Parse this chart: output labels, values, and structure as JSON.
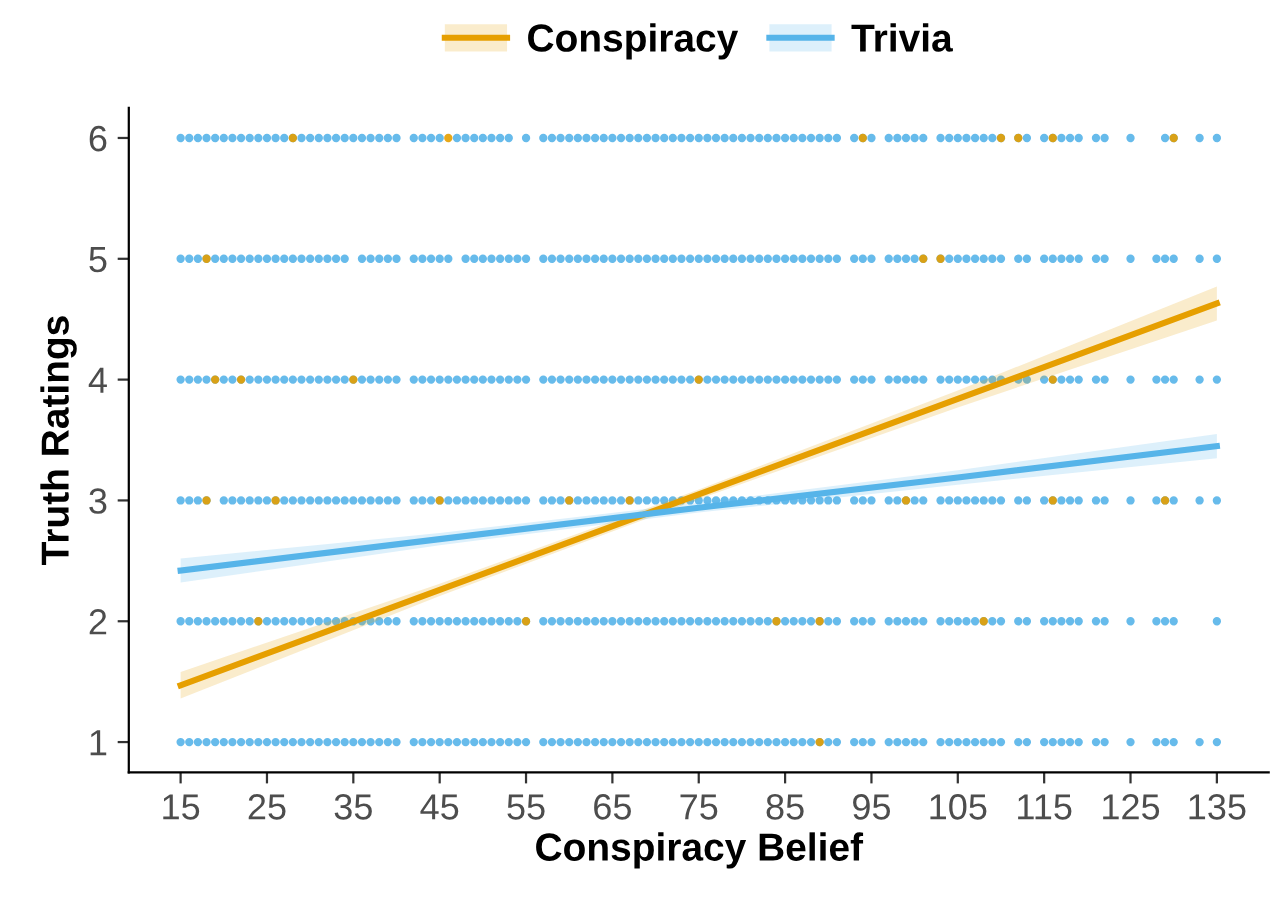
{
  "chart_data": {
    "type": "line",
    "xlabel": "Conspiracy Belief",
    "ylabel": "Truth Ratings",
    "xlim": [
      9,
      141
    ],
    "xticks": [
      15,
      25,
      35,
      45,
      55,
      65,
      75,
      85,
      95,
      105,
      115,
      125,
      135
    ],
    "ylim": [
      0.75,
      6.25
    ],
    "yticks": [
      1,
      2,
      3,
      4,
      5,
      6
    ],
    "grid": false,
    "legend": "top",
    "marker": "circle",
    "series": [
      {
        "type": "scatter",
        "color": "#56b4e9",
        "x": [
          15,
          16,
          17,
          18,
          19,
          20,
          21,
          22,
          23,
          24,
          25,
          26,
          27,
          28,
          29,
          30,
          31,
          32,
          33,
          34,
          35,
          36,
          37,
          38,
          39,
          40,
          42,
          43,
          44,
          45,
          46,
          47,
          48,
          49,
          50,
          51,
          52,
          53,
          54,
          55,
          57,
          58,
          59,
          60,
          61,
          62,
          63,
          64,
          65,
          66,
          67,
          68,
          69,
          70,
          71,
          72,
          73,
          74,
          75,
          76,
          77,
          78,
          79,
          80,
          81,
          82,
          83,
          84,
          85,
          86,
          87,
          88,
          89,
          90,
          91,
          93,
          94,
          95,
          97,
          98,
          99,
          100,
          101,
          103,
          104,
          105,
          106,
          107,
          108,
          109,
          110,
          112,
          113,
          115,
          116,
          117,
          118,
          119,
          121,
          122,
          125,
          128,
          129,
          130,
          133,
          135
        ],
        "values": [
          1,
          1,
          1,
          1,
          1,
          1,
          1,
          1,
          1,
          1,
          1,
          1,
          1,
          1,
          1,
          1,
          1,
          1,
          1,
          1,
          1,
          1,
          1,
          1,
          1,
          1,
          1,
          1,
          1,
          1,
          1,
          1,
          1,
          1,
          1,
          1,
          1,
          1,
          1,
          1,
          1,
          1,
          1,
          1,
          1,
          1,
          1,
          1,
          1,
          1,
          1,
          1,
          1,
          1,
          1,
          1,
          1,
          1,
          1,
          1,
          1,
          1,
          1,
          1,
          1,
          1,
          1,
          1,
          1,
          1,
          1,
          1,
          1,
          1,
          1,
          1,
          1,
          1,
          1,
          1,
          1,
          1,
          1,
          1,
          1,
          1,
          1,
          1,
          1,
          1,
          1,
          1,
          1,
          1,
          1,
          1,
          1,
          1,
          1,
          1,
          1,
          1,
          1,
          1,
          1,
          1
        ]
      },
      {
        "type": "scatter",
        "color": "#56b4e9",
        "x": [
          15,
          16,
          17,
          18,
          19,
          20,
          21,
          22,
          23,
          24,
          25,
          26,
          27,
          28,
          29,
          30,
          31,
          32,
          33,
          34,
          35,
          36,
          37,
          38,
          39,
          40,
          42,
          43,
          44,
          45,
          46,
          47,
          48,
          49,
          50,
          51,
          52,
          53,
          54,
          55,
          57,
          58,
          59,
          60,
          61,
          62,
          63,
          64,
          65,
          66,
          67,
          68,
          69,
          70,
          71,
          72,
          73,
          74,
          75,
          76,
          77,
          78,
          79,
          80,
          81,
          82,
          83,
          84,
          85,
          86,
          87,
          88,
          89,
          90,
          91,
          93,
          94,
          95,
          97,
          98,
          99,
          100,
          101,
          103,
          104,
          105,
          106,
          107,
          108,
          109,
          110,
          112,
          113,
          115,
          116,
          117,
          118,
          119,
          121,
          122,
          125,
          128,
          129,
          130,
          135
        ],
        "values": [
          2,
          2,
          2,
          2,
          2,
          2,
          2,
          2,
          2,
          2,
          2,
          2,
          2,
          2,
          2,
          2,
          2,
          2,
          2,
          2,
          2,
          2,
          2,
          2,
          2,
          2,
          2,
          2,
          2,
          2,
          2,
          2,
          2,
          2,
          2,
          2,
          2,
          2,
          2,
          2,
          2,
          2,
          2,
          2,
          2,
          2,
          2,
          2,
          2,
          2,
          2,
          2,
          2,
          2,
          2,
          2,
          2,
          2,
          2,
          2,
          2,
          2,
          2,
          2,
          2,
          2,
          2,
          2,
          2,
          2,
          2,
          2,
          2,
          2,
          2,
          2,
          2,
          2,
          2,
          2,
          2,
          2,
          2,
          2,
          2,
          2,
          2,
          2,
          2,
          2,
          2,
          2,
          2,
          2,
          2,
          2,
          2,
          2,
          2,
          2,
          2,
          2,
          2,
          2,
          2
        ]
      },
      {
        "type": "scatter",
        "color": "#56b4e9",
        "x": [
          15,
          16,
          17,
          18,
          20,
          21,
          22,
          23,
          24,
          25,
          26,
          27,
          28,
          29,
          30,
          31,
          32,
          33,
          34,
          35,
          36,
          37,
          38,
          39,
          40,
          42,
          43,
          44,
          45,
          46,
          47,
          48,
          49,
          50,
          51,
          52,
          53,
          54,
          55,
          57,
          58,
          59,
          60,
          61,
          62,
          63,
          64,
          65,
          66,
          67,
          68,
          69,
          70,
          71,
          72,
          73,
          74,
          75,
          76,
          77,
          78,
          79,
          80,
          81,
          82,
          83,
          84,
          85,
          86,
          87,
          88,
          89,
          90,
          91,
          93,
          94,
          95,
          97,
          98,
          99,
          100,
          101,
          103,
          104,
          105,
          106,
          107,
          108,
          109,
          110,
          112,
          113,
          115,
          116,
          117,
          118,
          119,
          121,
          122,
          125,
          128,
          129,
          130,
          133,
          135
        ],
        "values": [
          3,
          3,
          3,
          3,
          3,
          3,
          3,
          3,
          3,
          3,
          3,
          3,
          3,
          3,
          3,
          3,
          3,
          3,
          3,
          3,
          3,
          3,
          3,
          3,
          3,
          3,
          3,
          3,
          3,
          3,
          3,
          3,
          3,
          3,
          3,
          3,
          3,
          3,
          3,
          3,
          3,
          3,
          3,
          3,
          3,
          3,
          3,
          3,
          3,
          3,
          3,
          3,
          3,
          3,
          3,
          3,
          3,
          3,
          3,
          3,
          3,
          3,
          3,
          3,
          3,
          3,
          3,
          3,
          3,
          3,
          3,
          3,
          3,
          3,
          3,
          3,
          3,
          3,
          3,
          3,
          3,
          3,
          3,
          3,
          3,
          3,
          3,
          3,
          3,
          3,
          3,
          3,
          3,
          3,
          3,
          3,
          3,
          3,
          3,
          3,
          3,
          3,
          3,
          3,
          3
        ]
      },
      {
        "type": "scatter",
        "color": "#56b4e9",
        "x": [
          15,
          16,
          17,
          18,
          19,
          20,
          21,
          22,
          23,
          24,
          25,
          26,
          27,
          28,
          29,
          30,
          31,
          32,
          33,
          34,
          35,
          36,
          37,
          38,
          39,
          40,
          42,
          43,
          44,
          45,
          46,
          47,
          48,
          49,
          50,
          51,
          52,
          53,
          54,
          55,
          57,
          58,
          59,
          60,
          61,
          62,
          63,
          64,
          65,
          66,
          67,
          68,
          69,
          70,
          71,
          72,
          73,
          74,
          75,
          76,
          77,
          78,
          79,
          80,
          81,
          82,
          83,
          84,
          85,
          86,
          87,
          88,
          89,
          90,
          91,
          93,
          94,
          95,
          97,
          98,
          99,
          100,
          101,
          103,
          104,
          105,
          106,
          107,
          108,
          109,
          110,
          112,
          113,
          115,
          116,
          117,
          118,
          119,
          121,
          122,
          125,
          128,
          129,
          130,
          133,
          135
        ],
        "values": [
          4,
          4,
          4,
          4,
          4,
          4,
          4,
          4,
          4,
          4,
          4,
          4,
          4,
          4,
          4,
          4,
          4,
          4,
          4,
          4,
          4,
          4,
          4,
          4,
          4,
          4,
          4,
          4,
          4,
          4,
          4,
          4,
          4,
          4,
          4,
          4,
          4,
          4,
          4,
          4,
          4,
          4,
          4,
          4,
          4,
          4,
          4,
          4,
          4,
          4,
          4,
          4,
          4,
          4,
          4,
          4,
          4,
          4,
          4,
          4,
          4,
          4,
          4,
          4,
          4,
          4,
          4,
          4,
          4,
          4,
          4,
          4,
          4,
          4,
          4,
          4,
          4,
          4,
          4,
          4,
          4,
          4,
          4,
          4,
          4,
          4,
          4,
          4,
          4,
          4,
          4,
          4,
          4,
          4,
          4,
          4,
          4,
          4,
          4,
          4,
          4,
          4,
          4,
          4,
          4,
          4
        ]
      },
      {
        "type": "scatter",
        "color": "#56b4e9",
        "x": [
          15,
          16,
          17,
          18,
          19,
          20,
          21,
          22,
          23,
          24,
          25,
          26,
          27,
          28,
          29,
          30,
          31,
          32,
          33,
          34,
          36,
          37,
          38,
          39,
          40,
          42,
          43,
          44,
          45,
          46,
          48,
          49,
          50,
          51,
          52,
          53,
          54,
          55,
          57,
          58,
          59,
          60,
          61,
          62,
          63,
          64,
          65,
          66,
          67,
          68,
          69,
          70,
          71,
          72,
          73,
          74,
          75,
          76,
          77,
          78,
          79,
          80,
          81,
          82,
          83,
          84,
          85,
          86,
          87,
          88,
          89,
          90,
          91,
          93,
          94,
          95,
          97,
          98,
          99,
          100,
          101,
          103,
          104,
          105,
          106,
          107,
          108,
          109,
          110,
          112,
          113,
          115,
          116,
          117,
          118,
          119,
          121,
          122,
          125,
          128,
          129,
          130,
          133,
          135
        ],
        "values": [
          5,
          5,
          5,
          5,
          5,
          5,
          5,
          5,
          5,
          5,
          5,
          5,
          5,
          5,
          5,
          5,
          5,
          5,
          5,
          5,
          5,
          5,
          5,
          5,
          5,
          5,
          5,
          5,
          5,
          5,
          5,
          5,
          5,
          5,
          5,
          5,
          5,
          5,
          5,
          5,
          5,
          5,
          5,
          5,
          5,
          5,
          5,
          5,
          5,
          5,
          5,
          5,
          5,
          5,
          5,
          5,
          5,
          5,
          5,
          5,
          5,
          5,
          5,
          5,
          5,
          5,
          5,
          5,
          5,
          5,
          5,
          5,
          5,
          5,
          5,
          5,
          5,
          5,
          5,
          5,
          5,
          5,
          5,
          5,
          5,
          5,
          5,
          5,
          5,
          5,
          5,
          5,
          5,
          5,
          5,
          5,
          5,
          5,
          5,
          5,
          5,
          5,
          5,
          5
        ]
      },
      {
        "type": "scatter",
        "color": "#56b4e9",
        "x": [
          15,
          16,
          17,
          18,
          19,
          20,
          21,
          22,
          23,
          24,
          25,
          26,
          27,
          28,
          29,
          30,
          31,
          32,
          33,
          34,
          35,
          36,
          37,
          38,
          39,
          40,
          42,
          43,
          44,
          45,
          47,
          48,
          49,
          50,
          51,
          52,
          53,
          55,
          57,
          58,
          59,
          60,
          61,
          62,
          63,
          64,
          65,
          66,
          67,
          68,
          69,
          70,
          71,
          72,
          73,
          74,
          75,
          76,
          77,
          78,
          79,
          80,
          81,
          82,
          83,
          84,
          85,
          86,
          87,
          88,
          89,
          90,
          91,
          93,
          94,
          95,
          97,
          98,
          99,
          100,
          101,
          103,
          104,
          105,
          106,
          107,
          108,
          109,
          110,
          112,
          113,
          115,
          116,
          117,
          118,
          119,
          121,
          122,
          125,
          129,
          130,
          133,
          135
        ],
        "values": [
          6,
          6,
          6,
          6,
          6,
          6,
          6,
          6,
          6,
          6,
          6,
          6,
          6,
          6,
          6,
          6,
          6,
          6,
          6,
          6,
          6,
          6,
          6,
          6,
          6,
          6,
          6,
          6,
          6,
          6,
          6,
          6,
          6,
          6,
          6,
          6,
          6,
          6,
          6,
          6,
          6,
          6,
          6,
          6,
          6,
          6,
          6,
          6,
          6,
          6,
          6,
          6,
          6,
          6,
          6,
          6,
          6,
          6,
          6,
          6,
          6,
          6,
          6,
          6,
          6,
          6,
          6,
          6,
          6,
          6,
          6,
          6,
          6,
          6,
          6,
          6,
          6,
          6,
          6,
          6,
          6,
          6,
          6,
          6,
          6,
          6,
          6,
          6,
          6,
          6,
          6,
          6,
          6,
          6,
          6,
          6,
          6,
          6,
          6,
          6,
          6,
          6,
          6
        ]
      },
      {
        "type": "scatter",
        "color": "#e69f00",
        "x": [
          89,
          24,
          55,
          84,
          89,
          108,
          18,
          26,
          45,
          60,
          67,
          99,
          116,
          129,
          19,
          22,
          35,
          75,
          116,
          18,
          101,
          103,
          28,
          46,
          94,
          110,
          112,
          116,
          130
        ],
        "values": [
          1,
          2,
          2,
          2,
          2,
          2,
          3,
          3,
          3,
          3,
          3,
          3,
          3,
          3,
          4,
          4,
          4,
          4,
          4,
          5,
          5,
          5,
          6,
          6,
          6,
          6,
          6,
          6,
          6
        ]
      },
      {
        "name": "Conspiracy",
        "marker": "none",
        "color": "#e69f00",
        "x": [
          15,
          45,
          75,
          105,
          135
        ],
        "values": [
          1.47,
          2.26,
          3.05,
          3.84,
          4.63
        ],
        "lower": [
          1.36,
          2.21,
          3.01,
          3.77,
          4.49
        ],
        "upper": [
          1.58,
          2.31,
          3.09,
          3.91,
          4.77
        ]
      },
      {
        "name": "Trivia",
        "marker": "none",
        "color": "#56b4e9",
        "x": [
          15,
          45,
          75,
          105,
          135
        ],
        "values": [
          2.42,
          2.68,
          2.94,
          3.19,
          3.45
        ],
        "lower": [
          2.32,
          2.63,
          2.9,
          3.13,
          3.35
        ],
        "upper": [
          2.52,
          2.73,
          2.98,
          3.25,
          3.55
        ]
      }
    ]
  }
}
